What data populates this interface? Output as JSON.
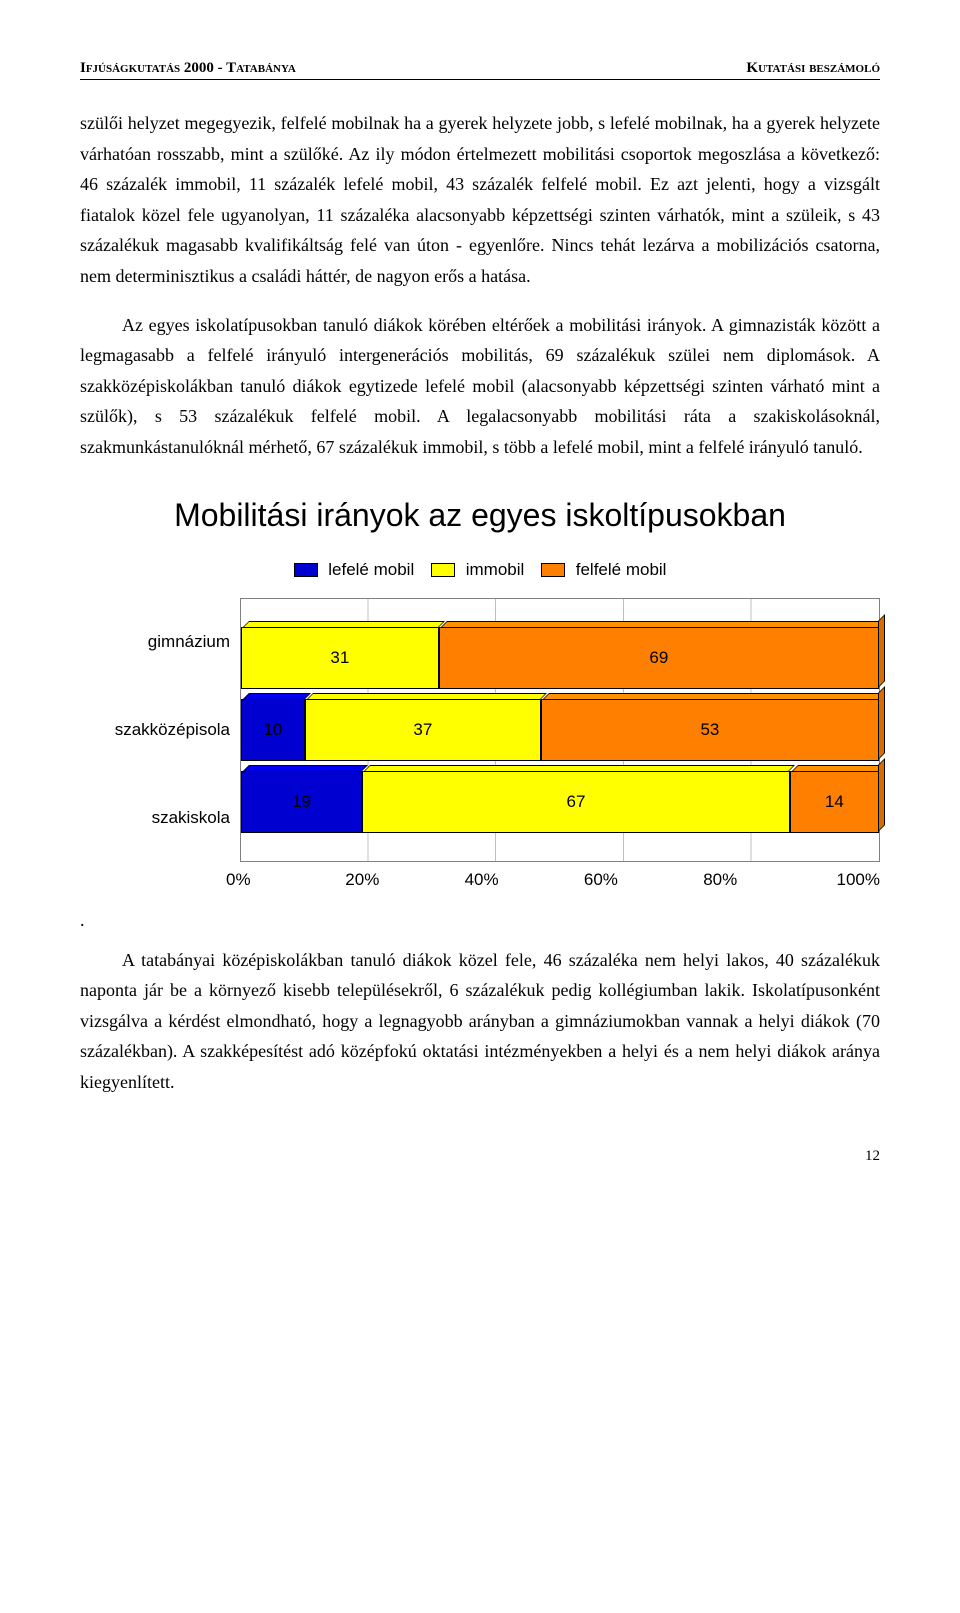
{
  "header": {
    "left": "Ifjúságkutatás 2000 - Tatabánya",
    "right": "Kutatási beszámoló"
  },
  "paragraphs": {
    "p1": "szülői helyzet megegyezik, felfelé mobilnak ha a gyerek helyzete jobb, s lefelé mobilnak, ha a gyerek helyzete várhatóan rosszabb, mint a szülőké. Az ily módon értelmezett mobilitási csoportok megoszlása a következő: 46 százalék immobil, 11 százalék lefelé mobil, 43 százalék felfelé mobil. Ez azt jelenti, hogy a vizsgált fiatalok közel fele ugyanolyan, 11 százaléka alacsonyabb képzettségi szinten várhatók, mint a szüleik, s 43 százalékuk magasabb kvalifikáltság felé van úton - egyenlőre. Nincs tehát lezárva a mobilizációs csatorna, nem determinisztikus a családi háttér, de nagyon erős a hatása.",
    "p2": "Az egyes iskolatípusokban tanuló diákok körében eltérőek a mobilitási irányok. A gimnazisták között a legmagasabb a felfelé irányuló intergenerációs mobilitás, 69 százalékuk szülei nem diplomások. A szakközépiskolákban tanuló diákok egytizede lefelé mobil (alacsonyabb képzettségi szinten várható mint a szülők), s 53 százalékuk felfelé mobil. A legalacsonyabb mobilitási ráta a szakiskolásoknál, szakmunkástanulóknál mérhető, 67 százalékuk immobil, s több a lefelé mobil, mint a felfelé irányuló tanuló.",
    "p3": "A tatabányai középiskolákban tanuló diákok közel fele, 46 százaléka nem helyi lakos, 40 százalékuk naponta jár be a környező kisebb településekről, 6 százalékuk pedig kollégiumban lakik. Iskolatípusonként vizsgálva a kérdést elmondható, hogy a legnagyobb arányban a gimnáziumokban vannak a helyi diákok (70 százalékban). A szakképesítést adó középfokú oktatási intézményekben a helyi és a nem helyi diákok aránya kiegyenlített."
  },
  "chart": {
    "title": "Mobilitási irányok az egyes iskoltípusokban",
    "type": "stacked-bar-horizontal-100pct",
    "legend": [
      {
        "label": "lefelé mobil",
        "color": "#0000d0"
      },
      {
        "label": "immobil",
        "color": "#ffff00"
      },
      {
        "label": "felfelé mobil",
        "color": "#ff7f00"
      }
    ],
    "categories": [
      "gimnázium",
      "szakközépisola",
      "szakiskola"
    ],
    "series": [
      {
        "name": "lefelé mobil",
        "color": "#0000d0",
        "values": [
          0,
          10,
          19
        ]
      },
      {
        "name": "immobil",
        "color": "#ffff00",
        "values": [
          31,
          37,
          67
        ]
      },
      {
        "name": "felfelé mobil",
        "color": "#ff7f00",
        "values": [
          69,
          53,
          14
        ]
      }
    ],
    "x_ticks": [
      "0%",
      "20%",
      "40%",
      "60%",
      "80%",
      "100%"
    ],
    "xlim": [
      0,
      100
    ],
    "background_color": "#ffffff",
    "grid_color": "#c0c0c0",
    "bar_border_color": "#000000",
    "font_family": "Arial",
    "label_fontsize": 17,
    "title_fontsize": 32
  },
  "dot": ".",
  "page_number": "12"
}
